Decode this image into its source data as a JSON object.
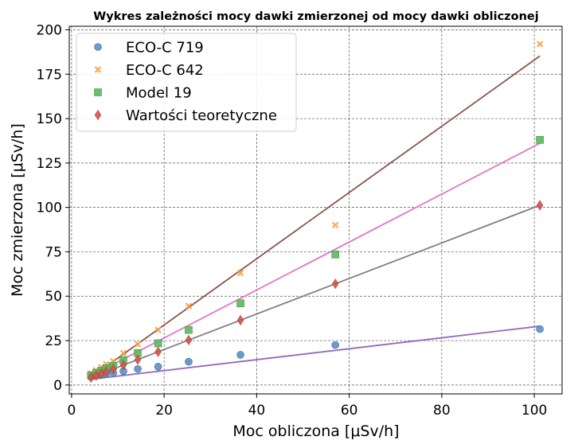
{
  "chart_data": {
    "type": "scatter",
    "title": "Wykres zależności mocy dawki zmierzonej od mocy dawki obliczonej",
    "xlabel": "Moc obliczona [μSv/h]",
    "ylabel": "Moc zmierzona [μSv/h]",
    "xlim": [
      -0.5,
      106
    ],
    "ylim": [
      -5,
      202
    ],
    "xticks": [
      0,
      20,
      40,
      60,
      80,
      100
    ],
    "yticks": [
      0,
      25,
      50,
      75,
      100,
      125,
      150,
      175,
      200
    ],
    "grid": true,
    "legend_position": "top-left",
    "series": [
      {
        "name": "ECO-C 719",
        "marker": "circle",
        "color": "#5b8fc7",
        "x": [
          4.2,
          5.3,
          6.4,
          7.5,
          9.0,
          11.2,
          14.3,
          18.7,
          25.3,
          36.5,
          57.0,
          101.2
        ],
        "y": [
          4.6,
          5.3,
          5.8,
          6.3,
          6.8,
          7.8,
          9.0,
          10.3,
          13.1,
          17.0,
          22.5,
          31.5
        ],
        "fit_color": "#9467bd",
        "fit": [
          1.95,
          0.308
        ]
      },
      {
        "name": "ECO-C 642",
        "marker": "x",
        "color": "#ff9f45",
        "x": [
          4.2,
          5.3,
          6.4,
          7.5,
          9.0,
          11.2,
          14.3,
          18.7,
          25.3,
          36.5,
          57.0,
          101.2
        ],
        "y": [
          6.5,
          8.3,
          10.0,
          11.8,
          13.4,
          18.0,
          23.0,
          31.0,
          44.5,
          63.0,
          90.0,
          192.0
        ],
        "fit_color": "#8c564b",
        "fit": [
          -3.5,
          1.865
        ]
      },
      {
        "name": "Model 19",
        "marker": "square",
        "color": "#5db85f",
        "x": [
          4.2,
          5.3,
          6.4,
          7.5,
          9.0,
          11.2,
          14.3,
          18.7,
          25.3,
          36.5,
          57.0,
          101.2
        ],
        "y": [
          5.5,
          6.8,
          8.0,
          9.5,
          10.8,
          14.0,
          18.0,
          23.5,
          31.0,
          46.0,
          73.5,
          138.0
        ],
        "fit_color": "#e377c2",
        "fit": [
          -0.5,
          1.35
        ]
      },
      {
        "name": "Wartości teoretyczne",
        "marker": "diamond",
        "color": "#d9504a",
        "x": [
          4.2,
          5.3,
          6.4,
          7.5,
          9.0,
          11.2,
          14.3,
          18.7,
          25.3,
          36.5,
          57.0,
          101.2
        ],
        "y": [
          4.2,
          5.3,
          6.4,
          7.5,
          9.0,
          11.2,
          14.3,
          18.7,
          25.3,
          36.5,
          57.0,
          101.2
        ],
        "fit_color": "#7f7f7f",
        "fit": [
          0,
          1.0
        ]
      }
    ]
  }
}
